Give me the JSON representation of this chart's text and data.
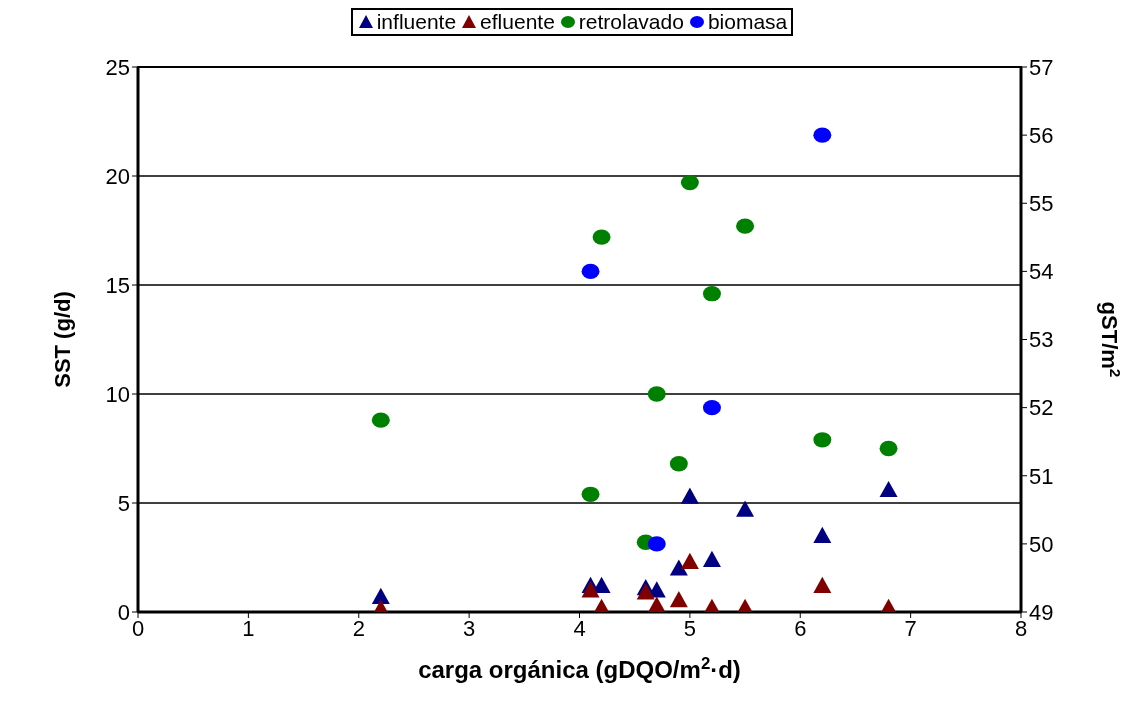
{
  "chart_data": {
    "type": "scatter",
    "xlabel": "carga orgánica (gDQO/m$^{2}$·d)",
    "ylabel": "SST (g/d)",
    "y2label": "gST/m$^{2}$",
    "x": [
      2.2,
      4.1,
      4.2,
      4.6,
      4.7,
      4.9,
      5.0,
      5.2,
      5.5,
      6.2,
      6.8
    ],
    "series": [
      {
        "name": "influente",
        "color": "#000080",
        "marker": "triangle",
        "values": [
          0.7,
          1.2,
          1.2,
          1.1,
          1.0,
          2.0,
          5.3,
          2.4,
          4.7,
          3.5,
          5.6
        ]
      },
      {
        "name": "efluente",
        "color": "#800000",
        "marker": "triangle",
        "values": [
          0.15,
          1.0,
          0.2,
          0.9,
          0.3,
          0.55,
          2.3,
          0.2,
          0.2,
          1.2,
          0.2
        ]
      },
      {
        "name": "retrolavado",
        "color": "#008000",
        "marker": "circle",
        "values": [
          8.8,
          5.4,
          17.2,
          3.2,
          10.0,
          6.8,
          19.7,
          14.6,
          17.7,
          7.9,
          7.5
        ]
      },
      {
        "name": "biomasa",
        "color": "#0000ff",
        "marker": "circle",
        "axis": "y2",
        "x": [
          4.1,
          4.7,
          5.2,
          6.2
        ],
        "values": [
          54,
          50,
          52,
          56
        ]
      }
    ],
    "xlim": [
      0,
      8
    ],
    "xticks": [
      0,
      1,
      2,
      3,
      4,
      5,
      6,
      7,
      8
    ],
    "ylim": [
      0,
      25
    ],
    "yticks": [
      0,
      5,
      10,
      15,
      20,
      25
    ],
    "y2lim": [
      49,
      57
    ],
    "y2ticks": [
      49,
      50,
      51,
      52,
      53,
      54,
      55,
      56,
      57
    ],
    "grid": "y",
    "legend": "top"
  }
}
